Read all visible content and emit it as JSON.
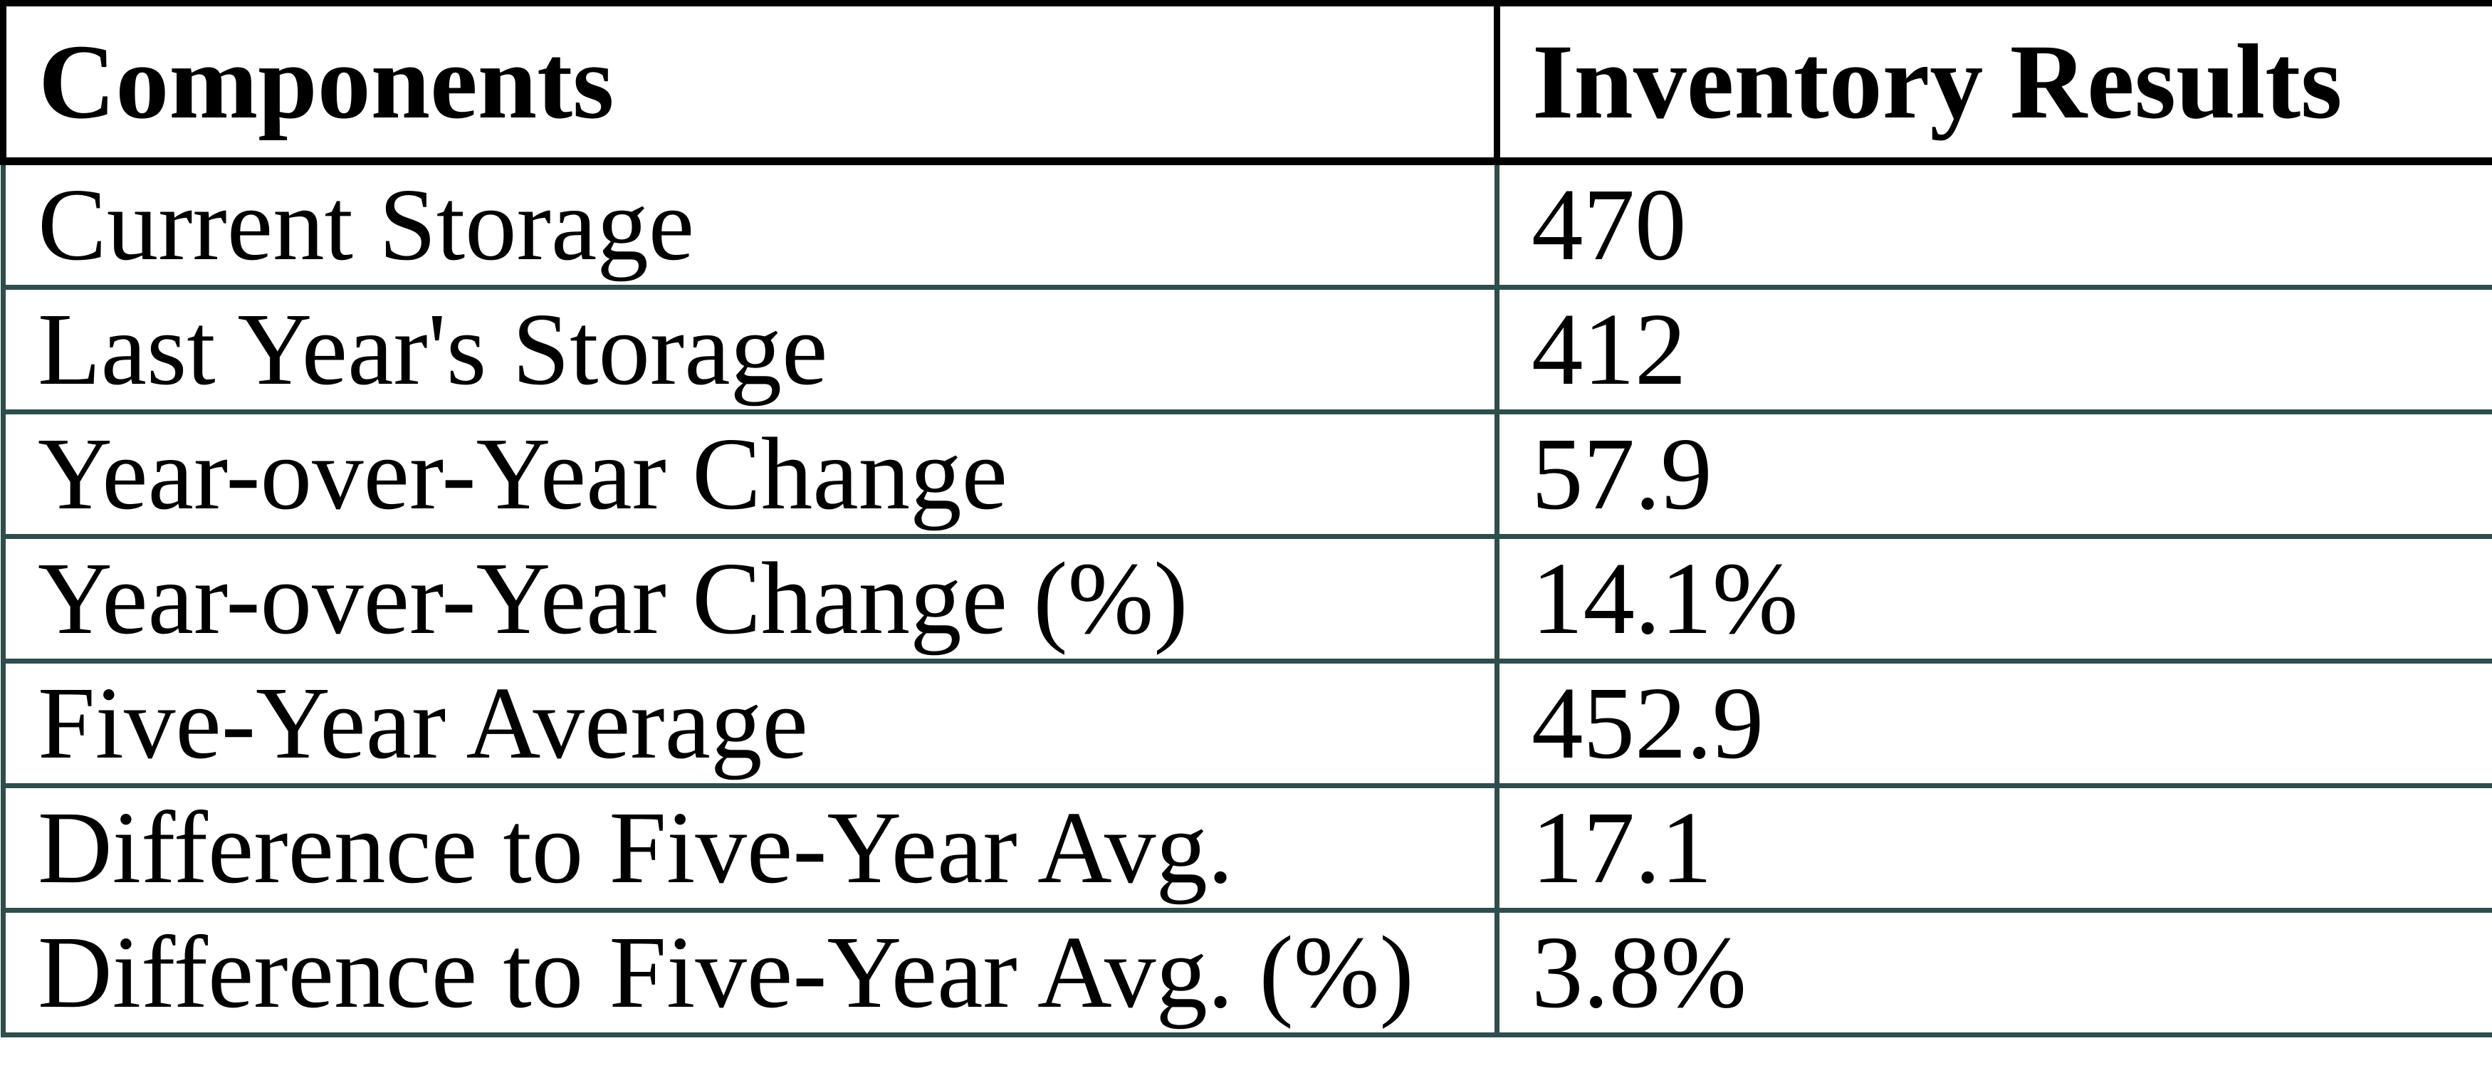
{
  "table": {
    "columns": [
      {
        "label": "Components"
      },
      {
        "label": "Inventory Results"
      }
    ],
    "rows": [
      {
        "component": "Current Storage",
        "result": "470"
      },
      {
        "component": "Last Year's Storage",
        "result": "412"
      },
      {
        "component": "Year-over-Year Change",
        "result": "57.9"
      },
      {
        "component": "Year-over-Year Change (%)",
        "result": "14.1%"
      },
      {
        "component": "Five-Year Average",
        "result": "452.9"
      },
      {
        "component": "Difference to Five-Year Avg.",
        "result": "17.1"
      },
      {
        "component": "Difference to Five-Year Avg. (%)",
        "result": "3.8%"
      }
    ]
  },
  "colors": {
    "header_border": "#000000",
    "row_border": "#2F4D4D",
    "text": "#000000",
    "background": "#FFFFFF"
  },
  "chart_data": {
    "type": "table",
    "columns": [
      "Components",
      "Inventory Results"
    ],
    "rows": [
      [
        "Current Storage",
        "470"
      ],
      [
        "Last Year's Storage",
        "412"
      ],
      [
        "Year-over-Year Change",
        "57.9"
      ],
      [
        "Year-over-Year Change (%)",
        "14.1%"
      ],
      [
        "Five-Year Average",
        "452.9"
      ],
      [
        "Difference to Five-Year Avg.",
        "17.1"
      ],
      [
        "Difference to Five-Year Avg. (%)",
        "3.8%"
      ]
    ]
  }
}
